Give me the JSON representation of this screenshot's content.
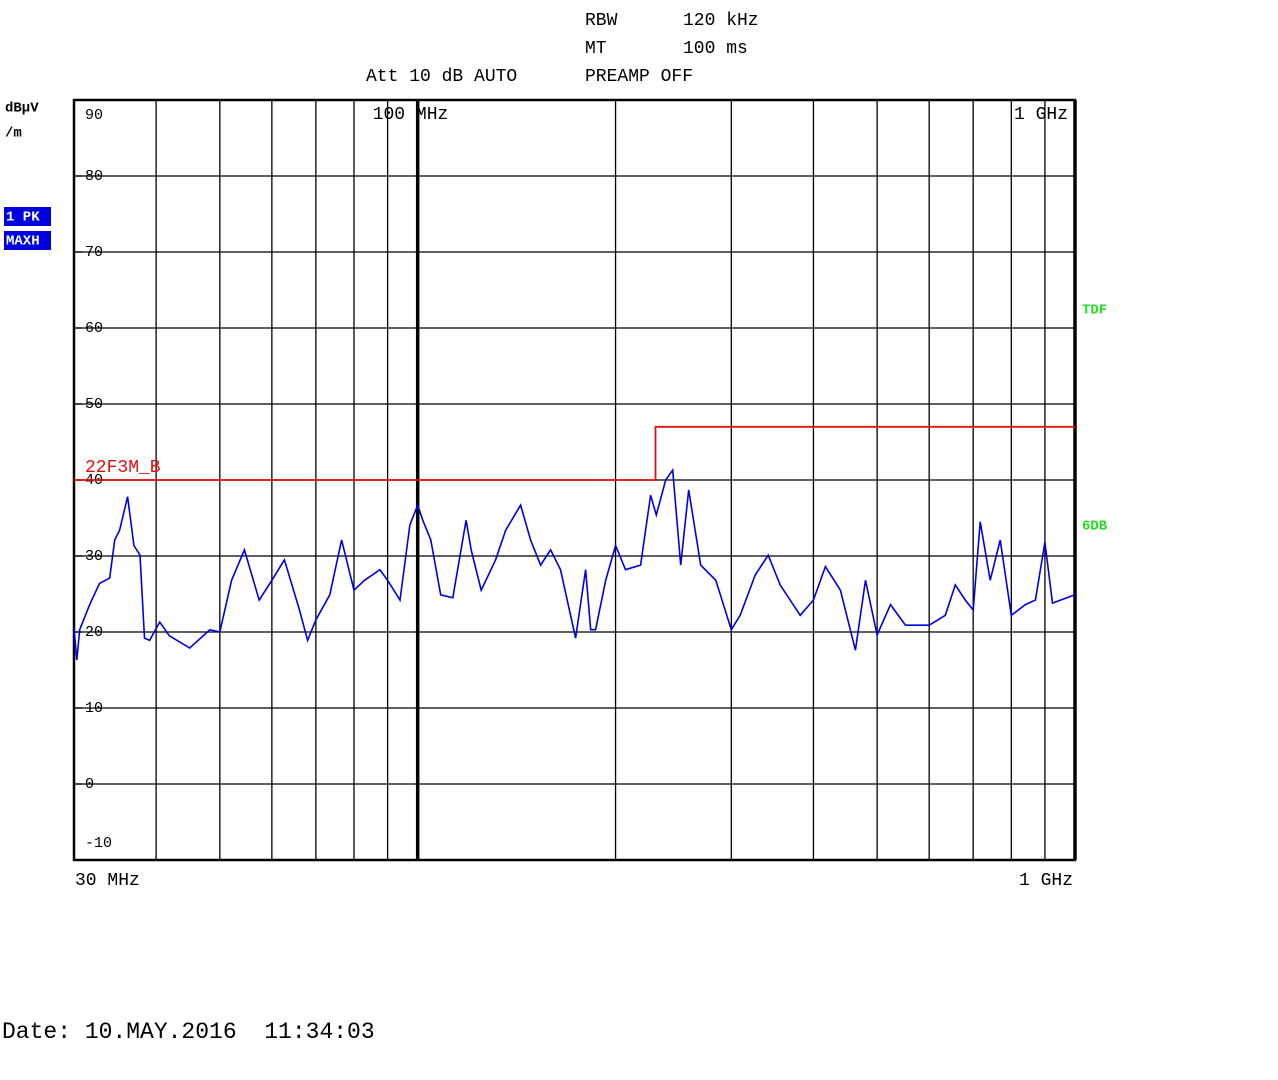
{
  "chart_data": {
    "type": "line",
    "header": {
      "rbw_label": "RBW",
      "rbw": "120 kHz",
      "mt_label": "MT",
      "mt": "100 ms",
      "att": "Att 10 dB AUTO",
      "preamp": "PREAMP OFF"
    },
    "y_label": [
      "dBµV",
      "/m"
    ],
    "trace_labels": [
      "1 PK",
      "MAXH"
    ],
    "side_labels": [
      "TDF",
      "6DB"
    ],
    "date": "Date: 10.MAY.2016  11:34:03",
    "log_x": true,
    "grid": true,
    "xlim": [
      30,
      1000
    ],
    "xlim_labels": [
      "30 MHz",
      "1 GHz"
    ],
    "xticks": [
      {
        "value": 100,
        "label": "100 MHz"
      },
      {
        "value": 1000,
        "label": "1 GHz"
      }
    ],
    "xgrid": [
      40,
      50,
      60,
      70,
      80,
      90,
      200,
      300,
      400,
      500,
      600,
      700,
      800,
      900
    ],
    "ylim": [
      -10,
      90
    ],
    "yticks": [
      90,
      80,
      70,
      60,
      50,
      40,
      30,
      20,
      10,
      0,
      -10
    ],
    "series": [
      {
        "color": "#0000e0",
        "x": [
          30,
          30.3,
          30.6,
          31.7,
          32.8,
          34.0,
          34.6,
          35.2,
          36.2,
          37.0,
          37.8,
          38.4,
          39.1,
          40.5,
          41.9,
          45.0,
          48.3,
          50,
          52.1,
          54.5,
          57.4,
          60,
          62.7,
          66.1,
          68.0,
          70,
          73.5,
          76.6,
          80,
          83.0,
          87.6,
          90,
          94.0,
          97.3,
          100,
          101.8,
          104.7,
          108.4,
          113.1,
          118.5,
          120.6,
          124.9,
          131.4,
          136.1,
          143.4,
          148.5,
          153.8,
          159.3,
          164.9,
          173.9,
          180.1,
          183.3,
          186.5,
          193.2,
          200,
          207.1,
          218.3,
          226.1,
          230.7,
          238.4,
          244.3,
          251.3,
          258.4,
          269.5,
          284.1,
          300,
          309.5,
          326.2,
          341.4,
          356.0,
          381.9,
          400,
          417.2,
          439.7,
          463.4,
          480.0,
          500,
          523.9,
          552.2,
          582.1,
          600,
          634.9,
          657.5,
          681.0,
          700,
          717.3,
          742.9,
          769.4,
          800,
          840.6,
          870.6,
          900,
          924.3,
          950.6,
          1000
        ],
        "values": [
          20.5,
          16.3,
          20.3,
          23.6,
          26.4,
          27.1,
          32.1,
          33.4,
          37.8,
          31.4,
          30.1,
          19.2,
          18.9,
          21.3,
          19.5,
          17.9,
          20.3,
          20.0,
          26.8,
          30.8,
          24.2,
          26.8,
          29.5,
          22.9,
          18.9,
          21.6,
          24.9,
          32.1,
          25.5,
          26.8,
          28.2,
          26.8,
          24.2,
          34.1,
          36.7,
          34.7,
          32.1,
          24.9,
          24.5,
          34.7,
          30.8,
          25.5,
          29.5,
          33.4,
          36.7,
          32.1,
          28.8,
          30.8,
          28.2,
          19.2,
          28.2,
          20.3,
          20.3,
          26.8,
          31.4,
          28.2,
          28.8,
          38.0,
          35.4,
          40.0,
          41.3,
          28.8,
          38.7,
          28.8,
          26.8,
          20.3,
          22.2,
          27.5,
          30.1,
          26.2,
          22.2,
          24.2,
          28.6,
          25.5,
          17.6,
          26.8,
          19.6,
          23.6,
          20.9,
          20.9,
          20.9,
          22.2,
          26.2,
          24.2,
          22.9,
          34.5,
          26.8,
          32.1,
          22.2,
          23.6,
          24.2,
          31.8,
          23.8,
          24.2,
          24.9
        ]
      },
      {
        "name": "22F3M_B",
        "color": "#e01010",
        "x": [
          30,
          230,
          230,
          1000
        ],
        "values": [
          40,
          40,
          47,
          47
        ]
      }
    ]
  }
}
